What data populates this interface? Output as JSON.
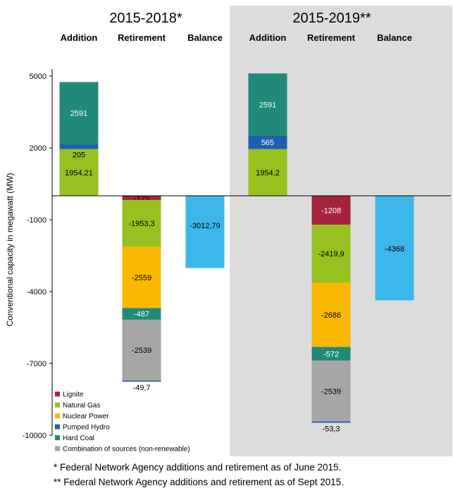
{
  "chart_data": {
    "type": "bar",
    "stacked": true,
    "ylabel": "Conventional capacity in megawatt (MW)",
    "ylim": [
      -10000,
      5000
    ],
    "yticks": [
      5000,
      2000,
      -1000,
      -4000,
      -7000,
      -10000
    ],
    "grid": false,
    "legend_position": "bottom-left",
    "colors": {
      "Lignite": "#a4243b",
      "Natural Gas": "#96c11f",
      "Nuclear Power": "#fbb800",
      "Pumped Hydro": "#1f5eae",
      "Hard Coal": "#21897a",
      "Combination of sources (non-renewable)": "#a6a6a6",
      "Balance": "#3db7e9"
    },
    "legend": [
      "Lignite",
      "Natural Gas",
      "Nuclear Power",
      "Pumped Hydro",
      "Hard Coal",
      "Combination of sources (non-renewable)"
    ],
    "groups": [
      {
        "title": "2015-2018*",
        "columns": [
          {
            "label": "Addition",
            "segments": [
              {
                "source": "Natural Gas",
                "value": 1954.21,
                "label": "1954,21"
              },
              {
                "source": "Pumped Hydro",
                "value": 205,
                "label": "205"
              },
              {
                "source": "Hard Coal",
                "value": 2591,
                "label": "2591"
              }
            ]
          },
          {
            "label": "Retirement",
            "segments": [
              {
                "source": "Lignite",
                "value": -175,
                "label": "-175"
              },
              {
                "source": "Natural Gas",
                "value": -1953.3,
                "label": "-1953,3"
              },
              {
                "source": "Nuclear Power",
                "value": -2559,
                "label": "-2559"
              },
              {
                "source": "Hard Coal",
                "value": -487,
                "label": "-487"
              },
              {
                "source": "Combination of sources (non-renewable)",
                "value": -2539,
                "label": "-2539"
              },
              {
                "source": "Pumped Hydro",
                "value": -49.7,
                "label": "-49,7"
              }
            ]
          },
          {
            "label": "Balance",
            "segments": [
              {
                "source": "Balance",
                "value": -3012.79,
                "label": "-3012,79"
              }
            ]
          }
        ]
      },
      {
        "title": "2015-2019**",
        "columns": [
          {
            "label": "Addition",
            "segments": [
              {
                "source": "Natural Gas",
                "value": 1954.2,
                "label": "1954,2"
              },
              {
                "source": "Pumped Hydro",
                "value": 565,
                "label": "565"
              },
              {
                "source": "Hard Coal",
                "value": 2591,
                "label": "2591"
              }
            ]
          },
          {
            "label": "Retirement",
            "segments": [
              {
                "source": "Lignite",
                "value": -1208,
                "label": "-1208"
              },
              {
                "source": "Natural Gas",
                "value": -2419.9,
                "label": "-2419,9"
              },
              {
                "source": "Nuclear Power",
                "value": -2686,
                "label": "-2686"
              },
              {
                "source": "Hard Coal",
                "value": -572,
                "label": "-572"
              },
              {
                "source": "Combination of sources (non-renewable)",
                "value": -2539,
                "label": "-2539"
              },
              {
                "source": "Pumped Hydro",
                "value": -53.3,
                "label": "-53,3"
              }
            ]
          },
          {
            "label": "Balance",
            "segments": [
              {
                "source": "Balance",
                "value": -4368,
                "label": "-4368"
              }
            ]
          }
        ]
      }
    ]
  },
  "footnotes": [
    "*   Federal Network Agency additions and retirement as of June 2015.",
    "** Federal Network Agency additions and retirement as of Sept 2015."
  ]
}
